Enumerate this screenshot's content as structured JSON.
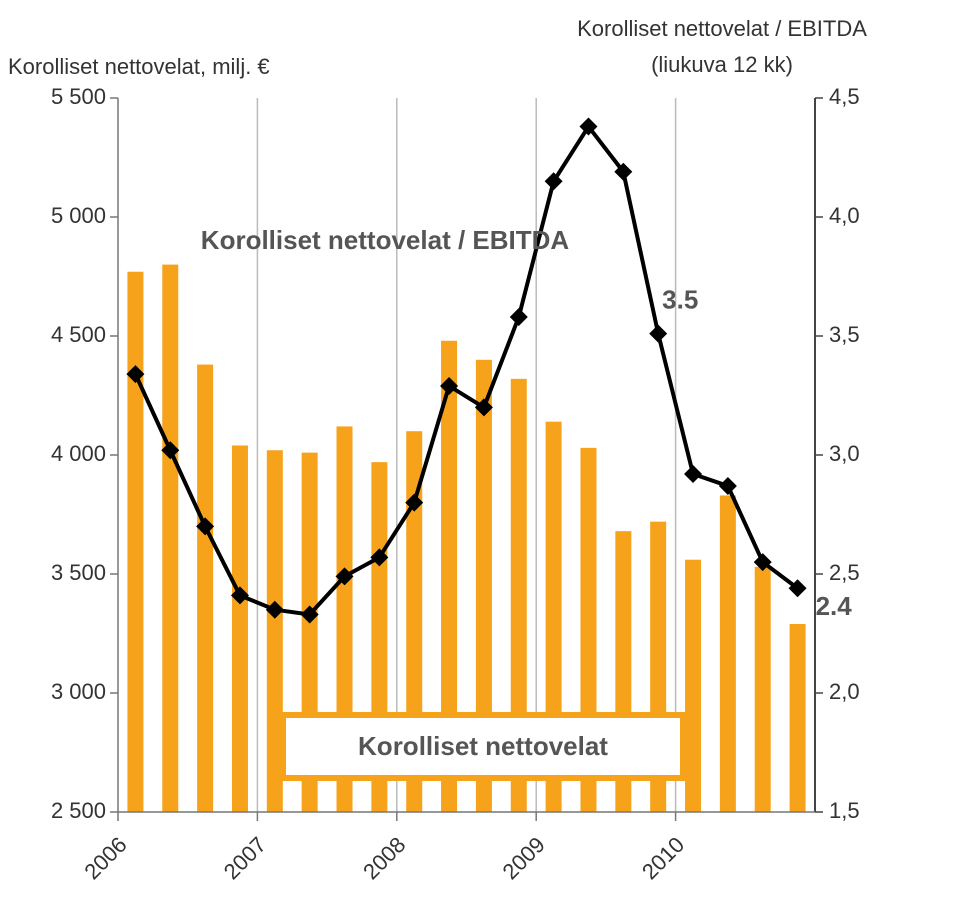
{
  "chart_data": {
    "type": "bar_line",
    "ylabel": "Korolliset nettovelat, milj. €",
    "y2label": [
      "Korolliset nettovelat / EBITDA",
      "(liukuva 12 kk)"
    ],
    "x": [
      2006.125,
      2006.375,
      2006.625,
      2006.875,
      2007.125,
      2007.375,
      2007.625,
      2007.875,
      2008.125,
      2008.375,
      2008.625,
      2008.875,
      2009.125,
      2009.375,
      2009.625,
      2009.875,
      2010.125,
      2010.375,
      2010.625,
      2010.875
    ],
    "xlim": [
      2006,
      2011
    ],
    "xticks": [
      2006,
      2007,
      2008,
      2009,
      2010
    ],
    "ylim": [
      2500,
      5500
    ],
    "yticks": [
      {
        "value": 2500,
        "label": "2 500"
      },
      {
        "value": 3000,
        "label": "3 000"
      },
      {
        "value": 3500,
        "label": "3 500"
      },
      {
        "value": 4000,
        "label": "4 000"
      },
      {
        "value": 4500,
        "label": "4 500"
      },
      {
        "value": 5000,
        "label": "5 000"
      },
      {
        "value": 5500,
        "label": "5 500"
      }
    ],
    "y2lim": [
      1.5,
      4.5
    ],
    "y2ticks": [
      {
        "value": 1.5,
        "label": "1,5"
      },
      {
        "value": 2.0,
        "label": "2,0"
      },
      {
        "value": 2.5,
        "label": "2,5"
      },
      {
        "value": 3.0,
        "label": "3,0"
      },
      {
        "value": 3.5,
        "label": "3,5"
      },
      {
        "value": 4.0,
        "label": "4,0"
      },
      {
        "value": 4.5,
        "label": "4,5"
      }
    ],
    "xgrid": true,
    "series": [
      {
        "name": "Korolliset nettovelat",
        "kind": "bar",
        "color": "#f7a21b",
        "values": [
          4770,
          4800,
          4380,
          4040,
          4020,
          4010,
          4120,
          3970,
          4100,
          4480,
          4400,
          4320,
          4140,
          4030,
          3680,
          3720,
          3560,
          3830,
          3530,
          3290
        ]
      },
      {
        "name": "Korolliset nettovelat / EBITDA",
        "kind": "line",
        "axis": "y2",
        "color": "#000000",
        "values": [
          3.34,
          3.02,
          2.7,
          2.41,
          2.35,
          2.33,
          2.49,
          2.57,
          2.8,
          3.29,
          3.2,
          3.58,
          4.15,
          4.38,
          4.19,
          3.51,
          2.92,
          2.87,
          2.55,
          2.44
        ],
        "value_labels": [
          null,
          null,
          null,
          null,
          null,
          null,
          null,
          null,
          null,
          null,
          null,
          null,
          null,
          null,
          null,
          "3.5",
          null,
          null,
          null,
          "2.4"
        ]
      }
    ]
  }
}
